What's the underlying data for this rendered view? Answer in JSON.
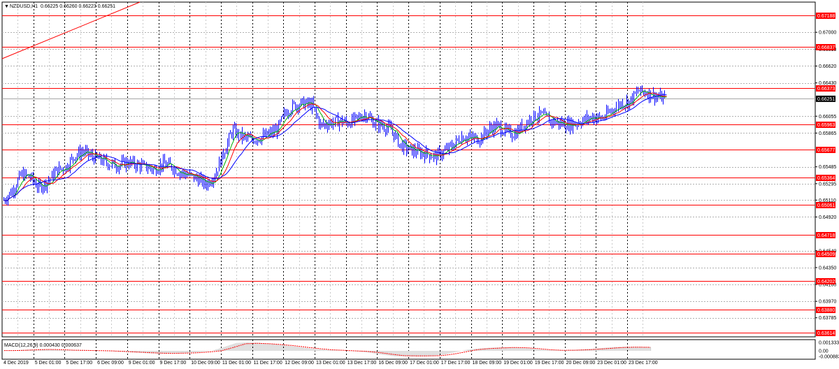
{
  "header": {
    "arrow": "▼",
    "symbol": "NZDUSD,H1",
    "ohlc": "0.66225 0.66260 0.66223 0.66251"
  },
  "macd": {
    "label": "MACD(12,26,9) 0.000430 0.000637",
    "y_labels": [
      "0.001333",
      "0.00",
      "-0.000883"
    ],
    "ylim": [
      -0.000883,
      0.001333
    ]
  },
  "colors": {
    "background": "#ffffff",
    "candles": "#0000ff",
    "ma_fast": "#00b000",
    "ma_mid": "#ff0000",
    "ma_slow": "#0000ff",
    "levels": "#ff0000",
    "current_price_bg": "#000000",
    "macd_hist": "#c0c0c0",
    "macd_signal": "#ff0000",
    "grid": "#000000"
  },
  "chart_data": {
    "type": "candlestick",
    "symbol": "NZDUSD",
    "timeframe": "H1",
    "ylim": [
      0.6357,
      0.6734
    ],
    "grid": true,
    "y_ticks": [
      "0.67000",
      "0.66810",
      "0.66620",
      "0.66430",
      "0.66055",
      "0.65865",
      "0.65485",
      "0.65295",
      "0.65110",
      "0.64920",
      "0.64540",
      "0.64350",
      "0.64160",
      "0.63970",
      "0.63785"
    ],
    "x_ticks": [
      "4 Dec 2019",
      "5 Dec 01:00",
      "5 Dec 17:00",
      "6 Dec 09:00",
      "9 Dec 01:00",
      "9 Dec 17:00",
      "10 Dec 09:00",
      "11 Dec 01:00",
      "11 Dec 17:00",
      "12 Dec 09:00",
      "13 Dec 01:00",
      "13 Dec 17:00",
      "16 Dec 09:00",
      "17 Dec 01:00",
      "17 Dec 17:00",
      "18 Dec 09:00",
      "19 Dec 01:00",
      "19 Dec 17:00",
      "20 Dec 09:00",
      "23 Dec 01:00",
      "23 Dec 17:00"
    ],
    "levels": [
      "0.67188",
      "0.66837",
      "0.66373",
      "0.65963",
      "0.65677",
      "0.65364",
      "0.65061",
      "0.64718",
      "0.64509",
      "0.64202",
      "0.63880",
      "0.63614"
    ],
    "current_price": "0.66251",
    "price_path": [
      0.6511,
      0.6522,
      0.654,
      0.6537,
      0.6525,
      0.6532,
      0.6545,
      0.6548,
      0.6561,
      0.6566,
      0.656,
      0.6556,
      0.6552,
      0.655,
      0.6554,
      0.6551,
      0.6549,
      0.6545,
      0.6552,
      0.6549,
      0.6542,
      0.6539,
      0.6535,
      0.6529,
      0.654,
      0.6565,
      0.659,
      0.6582,
      0.6579,
      0.6581,
      0.6585,
      0.659,
      0.661,
      0.6618,
      0.662,
      0.6618,
      0.6595,
      0.6598,
      0.66,
      0.6598,
      0.6602,
      0.6608,
      0.6598,
      0.6595,
      0.659,
      0.6573,
      0.6568,
      0.6565,
      0.6563,
      0.656,
      0.6566,
      0.6573,
      0.6583,
      0.6581,
      0.658,
      0.659,
      0.6595,
      0.6588,
      0.6585,
      0.6596,
      0.6605,
      0.6607,
      0.66,
      0.6598,
      0.6596,
      0.6598,
      0.6602,
      0.6605,
      0.6603,
      0.6612,
      0.662,
      0.6622,
      0.6634,
      0.6632,
      0.6628,
      0.6625
    ],
    "macd_path": [
      5e-05,
      0.0001,
      0.0002,
      0.00025,
      0.0002,
      0.00012,
      8e-05,
      4e-05,
      0.0,
      -0.0001,
      -0.0002,
      -0.0003,
      -0.0004,
      -0.00045,
      -0.0004,
      -0.00035,
      -0.0002,
      0.0,
      0.0006,
      0.00125,
      0.00133,
      0.00125,
      0.0011,
      0.0009,
      0.00065,
      0.0004,
      0.0002,
      0.0001,
      0.0,
      -0.0001,
      -0.0003,
      -0.0006,
      -0.00085,
      -0.00088,
      -0.00088,
      -0.00085,
      -0.0006,
      -0.0002,
      0.0002,
      0.0004,
      0.0005,
      0.0006,
      0.00055,
      0.0004,
      0.0002,
      0.0001,
      0.00012,
      0.00018,
      0.0003,
      0.00045,
      0.0006,
      0.00065,
      0.00063,
      0.0006
    ]
  }
}
